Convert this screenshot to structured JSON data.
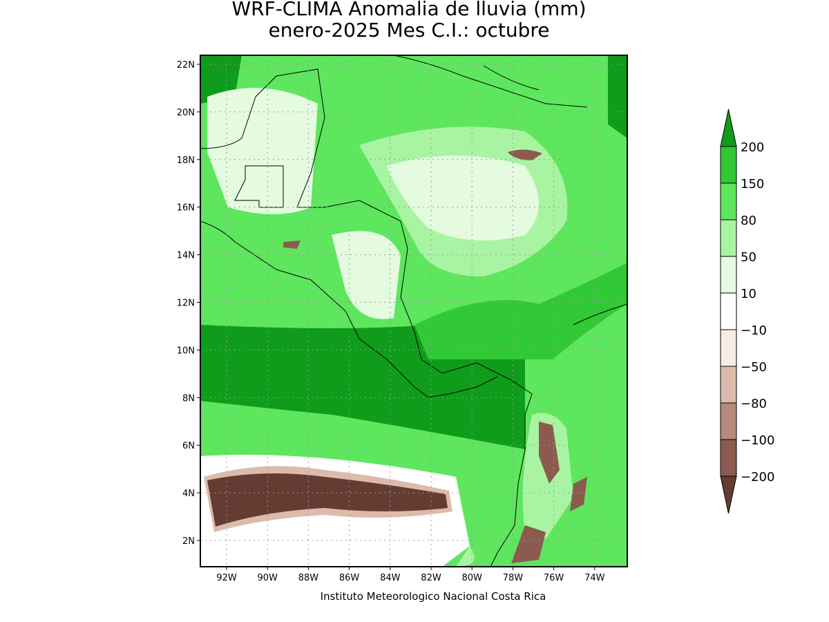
{
  "title": [
    "WRF-CLIMA Anomalia de lluvia (mm)",
    "enero-2025 Mes C.I.: octubre"
  ],
  "lat_ticks": [
    "22N",
    "20N",
    "18N",
    "16N",
    "14N",
    "12N",
    "10N",
    "8N",
    "6N",
    "4N",
    "2N"
  ],
  "lon_ticks": [
    "92W",
    "90W",
    "88W",
    "86W",
    "84W",
    "82W",
    "80W",
    "78W",
    "76W",
    "74W"
  ],
  "colorbar": {
    "labels": [
      "200",
      "150",
      "80",
      "50",
      "10",
      "−10",
      "−50",
      "−80",
      "−100",
      "−200"
    ],
    "colors": [
      "#0e9c1a",
      "#31c935",
      "#5ee65e",
      "#a9f4a2",
      "#e4fbe0",
      "#ffffff",
      "#f5ede3",
      "#dcbbac",
      "#b58b7e",
      "#8b5b4f",
      "#643c32"
    ]
  },
  "footer": "Instituto Meteorologico Nacional Costa Rica"
}
